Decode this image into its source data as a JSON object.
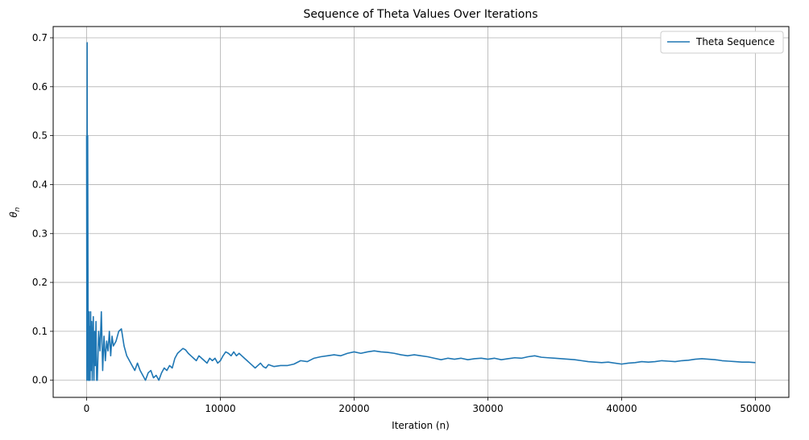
{
  "chart_data": {
    "type": "line",
    "title": "Sequence of Theta Values Over Iterations",
    "xlabel": "Iteration (n)",
    "ylabel": "θ",
    "ylabel_sub": "n",
    "xlim": [
      -2500,
      52500
    ],
    "ylim": [
      -0.035,
      0.723
    ],
    "x_ticks": [
      0,
      10000,
      20000,
      30000,
      40000,
      50000
    ],
    "y_ticks": [
      0.0,
      0.1,
      0.2,
      0.3,
      0.4,
      0.5,
      0.6,
      0.7
    ],
    "y_tick_labels": [
      "0.0",
      "0.1",
      "0.2",
      "0.3",
      "0.4",
      "0.5",
      "0.6",
      "0.7"
    ],
    "grid": true,
    "legend_position": "top-right",
    "colors": {
      "series": "#1f77b4",
      "grid": "#b0b0b0",
      "axis": "#000000"
    },
    "series": [
      {
        "name": "Theta Sequence",
        "x": [
          0,
          20,
          40,
          60,
          80,
          100,
          120,
          140,
          160,
          180,
          200,
          230,
          260,
          300,
          340,
          380,
          420,
          460,
          500,
          550,
          600,
          650,
          700,
          750,
          800,
          900,
          1000,
          1100,
          1200,
          1300,
          1400,
          1500,
          1600,
          1700,
          1800,
          1900,
          2000,
          2200,
          2400,
          2600,
          2800,
          3000,
          3200,
          3400,
          3600,
          3800,
          4000,
          4200,
          4400,
          4600,
          4800,
          5000,
          5200,
          5400,
          5600,
          5800,
          6000,
          6200,
          6400,
          6600,
          6800,
          7000,
          7200,
          7400,
          7600,
          7800,
          8000,
          8200,
          8400,
          8600,
          8800,
          9000,
          9200,
          9400,
          9600,
          9800,
          10000,
          10200,
          10400,
          10600,
          10800,
          11000,
          11200,
          11400,
          11600,
          11800,
          12000,
          12200,
          12400,
          12600,
          12800,
          13000,
          13200,
          13400,
          13600,
          13800,
          14000,
          14500,
          15000,
          15500,
          16000,
          16500,
          17000,
          17500,
          18000,
          18500,
          19000,
          19500,
          20000,
          20500,
          21000,
          21500,
          22000,
          22500,
          23000,
          23500,
          24000,
          24500,
          25000,
          25500,
          26000,
          26500,
          27000,
          27500,
          28000,
          28500,
          29000,
          29500,
          30000,
          30500,
          31000,
          31500,
          32000,
          32500,
          33000,
          33500,
          34000,
          34500,
          35000,
          35500,
          36000,
          36500,
          37000,
          37500,
          38000,
          38500,
          39000,
          39500,
          40000,
          40500,
          41000,
          41500,
          42000,
          42500,
          43000,
          43500,
          44000,
          44500,
          45000,
          45500,
          46000,
          46500,
          47000,
          47500,
          48000,
          48500,
          49000,
          49500,
          50000
        ],
        "y": [
          0.5,
          0.0,
          0.69,
          0.2,
          0.5,
          0.24,
          0.0,
          0.13,
          0.0,
          0.14,
          0.0,
          0.11,
          0.0,
          0.14,
          0.02,
          0.12,
          0.0,
          0.08,
          0.13,
          0.0,
          0.1,
          0.03,
          0.12,
          0.0,
          0.0,
          0.1,
          0.06,
          0.14,
          0.02,
          0.09,
          0.04,
          0.08,
          0.06,
          0.1,
          0.05,
          0.09,
          0.07,
          0.08,
          0.1,
          0.105,
          0.07,
          0.05,
          0.04,
          0.03,
          0.02,
          0.035,
          0.02,
          0.01,
          0.0,
          0.015,
          0.02,
          0.005,
          0.01,
          0.0,
          0.015,
          0.025,
          0.02,
          0.03,
          0.025,
          0.045,
          0.055,
          0.06,
          0.065,
          0.062,
          0.055,
          0.05,
          0.045,
          0.04,
          0.05,
          0.045,
          0.04,
          0.035,
          0.045,
          0.04,
          0.045,
          0.035,
          0.04,
          0.05,
          0.058,
          0.055,
          0.05,
          0.058,
          0.05,
          0.055,
          0.05,
          0.045,
          0.04,
          0.035,
          0.03,
          0.025,
          0.03,
          0.035,
          0.028,
          0.025,
          0.032,
          0.03,
          0.028,
          0.03,
          0.03,
          0.033,
          0.04,
          0.038,
          0.045,
          0.048,
          0.05,
          0.052,
          0.05,
          0.055,
          0.058,
          0.055,
          0.058,
          0.06,
          0.058,
          0.057,
          0.055,
          0.052,
          0.05,
          0.052,
          0.05,
          0.048,
          0.045,
          0.042,
          0.045,
          0.043,
          0.045,
          0.042,
          0.044,
          0.045,
          0.043,
          0.045,
          0.042,
          0.044,
          0.046,
          0.045,
          0.048,
          0.05,
          0.047,
          0.046,
          0.045,
          0.044,
          0.043,
          0.042,
          0.04,
          0.038,
          0.037,
          0.036,
          0.037,
          0.035,
          0.033,
          0.035,
          0.036,
          0.038,
          0.037,
          0.038,
          0.04,
          0.039,
          0.038,
          0.04,
          0.041,
          0.043,
          0.044,
          0.043,
          0.042,
          0.04,
          0.039,
          0.038,
          0.037,
          0.037,
          0.036
        ]
      }
    ]
  }
}
